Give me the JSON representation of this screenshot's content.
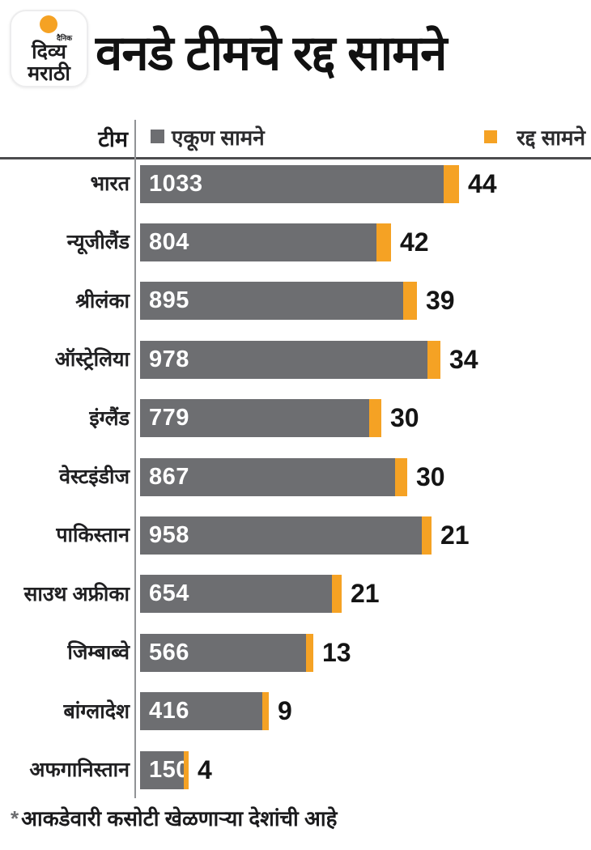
{
  "logo": {
    "line_small": "दैनिक",
    "line1": "दिव्य",
    "line2": "मराठी"
  },
  "title": "वनडे टीमचे रद्द सामने",
  "table_header": {
    "team_label": "टीम"
  },
  "legend": [
    {
      "label": "एकूण सामने",
      "color": "#6D6E71"
    },
    {
      "label": "रद्द सामने",
      "color": "#F5A224"
    }
  ],
  "chart_data": {
    "type": "bar",
    "orientation": "horizontal",
    "title": "वनडे टीमचे रद्द सामने",
    "categories": [
      "भारत",
      "न्यूजीलैंड",
      "श्रीलंका",
      "ऑस्ट्रेलिया",
      "इंग्लैंड",
      "वेस्टइंडीज",
      "पाकिस्तान",
      "साउथ अफ्रीका",
      "जिम्बाब्वे",
      "बांग्लादेश",
      "अफगानिस्तान"
    ],
    "series": [
      {
        "name": "एकूण सामने",
        "color": "#6D6E71",
        "values": [
          1033,
          804,
          895,
          978,
          779,
          867,
          958,
          654,
          566,
          416,
          150
        ]
      },
      {
        "name": "रद्द सामने",
        "color": "#F5A224",
        "values": [
          44,
          42,
          39,
          34,
          30,
          30,
          21,
          21,
          13,
          9,
          4
        ]
      }
    ],
    "xlim": [
      0,
      1033
    ],
    "grid": false,
    "legend_position": "top",
    "value_labels": "total inside bar (white), cancelled right of bar (black)"
  },
  "footnote": {
    "mark": "*",
    "text": "आकडेवारी कसोटी खेळणाऱ्या देशांची आहे"
  },
  "colors": {
    "bar_total": "#6D6E71",
    "bar_cancelled": "#F5A224",
    "accent_orange": "#F5A224",
    "header_rule": "#4C4C4E",
    "divider": "#919396",
    "text": "#1D1D1F",
    "background": "#FFFFFF"
  }
}
